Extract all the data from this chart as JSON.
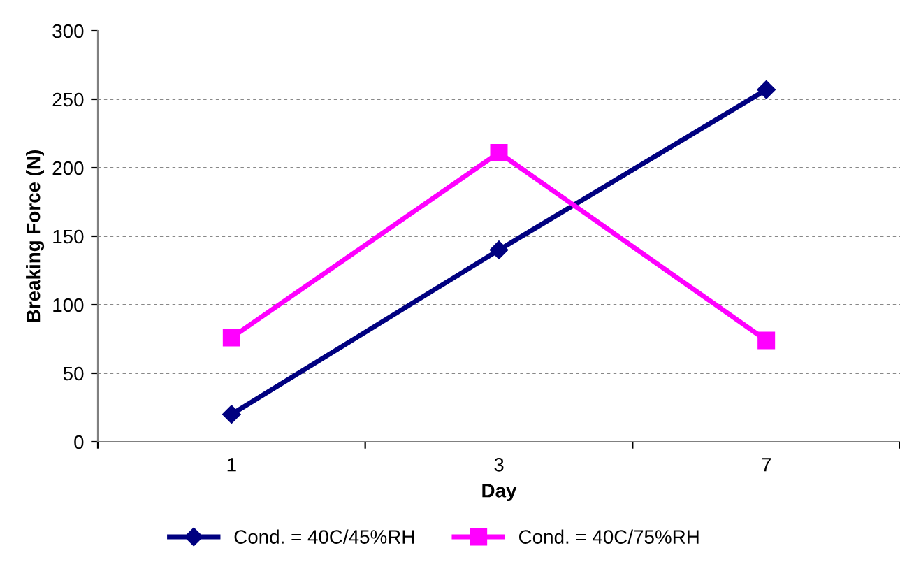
{
  "chart_data": {
    "type": "line",
    "xlabel": "Day",
    "ylabel": "Breaking Force (N)",
    "categories": [
      "1",
      "3",
      "7"
    ],
    "series": [
      {
        "name": "Cond. = 40C/45%RH",
        "color": "#000080",
        "marker": "diamond",
        "values": [
          20,
          140,
          257
        ]
      },
      {
        "name": "Cond. = 40C/75%RH",
        "color": "#ff00ff",
        "marker": "square",
        "values": [
          76,
          211,
          74
        ]
      }
    ],
    "ylim": [
      0,
      300
    ],
    "yticks": [
      0,
      50,
      100,
      150,
      200,
      250,
      300
    ],
    "grid": "y",
    "legend": "bottom"
  }
}
